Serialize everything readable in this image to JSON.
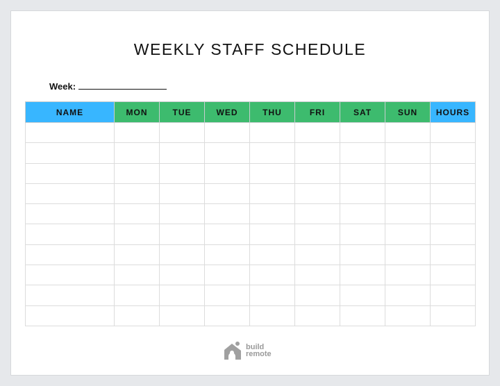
{
  "title": "WEEKLY STAFF SCHEDULE",
  "week_label": "Week:",
  "columns": [
    "NAME",
    "MON",
    "TUE",
    "WED",
    "THU",
    "FRI",
    "SAT",
    "SUN",
    "HOURS"
  ],
  "row_count": 10,
  "colors": {
    "name_header": "#38b6ff",
    "day_header": "#3dbb6e",
    "hours_header": "#38b6ff"
  },
  "logo": {
    "line1": "build",
    "line2": "remote"
  }
}
